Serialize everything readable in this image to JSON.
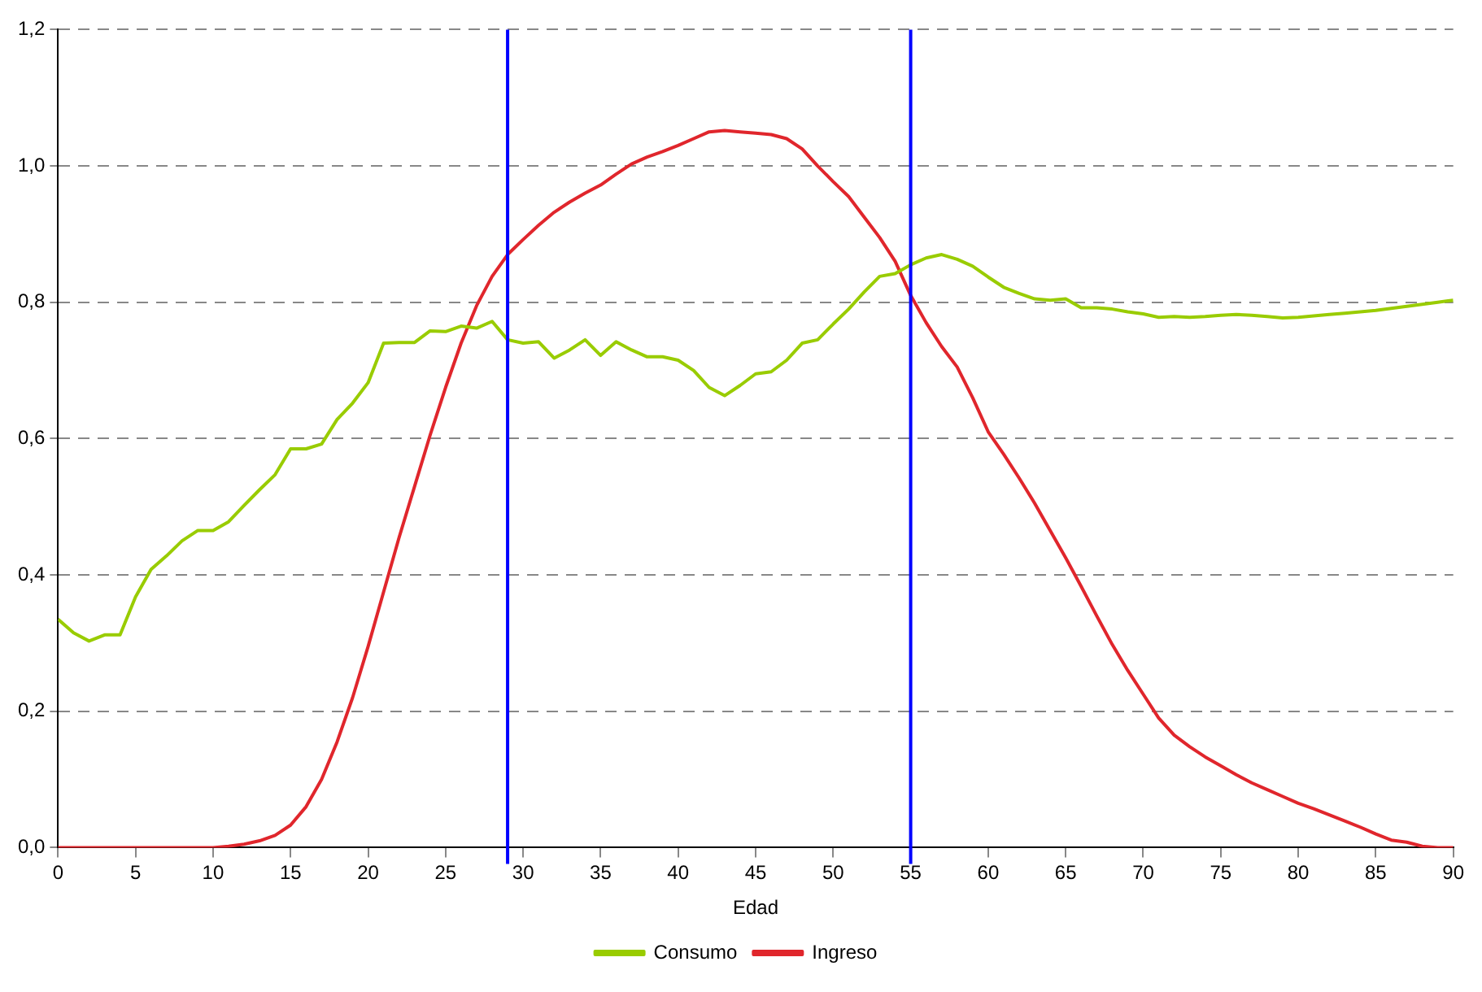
{
  "chart_data": {
    "type": "line",
    "xlabel": "Edad",
    "x": [
      0,
      1,
      2,
      3,
      4,
      5,
      6,
      7,
      8,
      9,
      10,
      11,
      12,
      13,
      14,
      15,
      16,
      17,
      18,
      19,
      20,
      21,
      22,
      23,
      24,
      25,
      26,
      27,
      28,
      29,
      30,
      31,
      32,
      33,
      34,
      35,
      36,
      37,
      38,
      39,
      40,
      41,
      42,
      43,
      44,
      45,
      46,
      47,
      48,
      49,
      50,
      51,
      52,
      53,
      54,
      55,
      56,
      57,
      58,
      59,
      60,
      61,
      62,
      63,
      64,
      65,
      66,
      67,
      68,
      69,
      70,
      71,
      72,
      73,
      74,
      75,
      76,
      77,
      78,
      79,
      80,
      81,
      82,
      83,
      84,
      85,
      86,
      87,
      88,
      89,
      90
    ],
    "series": [
      {
        "name": "Consumo",
        "color": "#99cc00",
        "values": [
          0.335,
          0.315,
          0.303,
          0.312,
          0.312,
          0.368,
          0.408,
          0.428,
          0.45,
          0.465,
          0.465,
          0.478,
          0.502,
          0.525,
          0.547,
          0.585,
          0.585,
          0.592,
          0.628,
          0.652,
          0.682,
          0.74,
          0.741,
          0.741,
          0.758,
          0.757,
          0.765,
          0.762,
          0.772,
          0.745,
          0.74,
          0.742,
          0.718,
          0.73,
          0.745,
          0.722,
          0.742,
          0.73,
          0.72,
          0.72,
          0.715,
          0.7,
          0.675,
          0.663,
          0.678,
          0.695,
          0.698,
          0.715,
          0.74,
          0.745,
          0.768,
          0.79,
          0.815,
          0.838,
          0.842,
          0.855,
          0.865,
          0.87,
          0.863,
          0.853,
          0.837,
          0.822,
          0.813,
          0.805,
          0.803,
          0.805,
          0.792,
          0.792,
          0.79,
          0.786,
          0.783,
          0.778,
          0.779,
          0.778,
          0.779,
          0.781,
          0.782,
          0.781,
          0.779,
          0.777,
          0.778,
          0.78,
          0.782,
          0.784,
          0.786,
          0.788,
          0.791,
          0.794,
          0.797,
          0.8,
          0.803
        ]
      },
      {
        "name": "Ingreso",
        "color": "#e0262c",
        "values": [
          0,
          0,
          0,
          0,
          0,
          0,
          0,
          0,
          0,
          0,
          0,
          0.002,
          0.005,
          0.01,
          0.018,
          0.033,
          0.06,
          0.1,
          0.155,
          0.22,
          0.295,
          0.375,
          0.455,
          0.53,
          0.605,
          0.675,
          0.74,
          0.795,
          0.838,
          0.87,
          0.892,
          0.913,
          0.932,
          0.947,
          0.96,
          0.972,
          0.988,
          1.003,
          1.013,
          1.021,
          1.03,
          1.04,
          1.05,
          1.052,
          1.05,
          1.048,
          1.046,
          1.04,
          1.025,
          1.0,
          0.977,
          0.955,
          0.925,
          0.895,
          0.86,
          0.81,
          0.77,
          0.735,
          0.705,
          0.66,
          0.61,
          0.577,
          0.542,
          0.505,
          0.465,
          0.425,
          0.383,
          0.34,
          0.298,
          0.26,
          0.225,
          0.19,
          0.165,
          0.148,
          0.133,
          0.12,
          0.107,
          0.095,
          0.085,
          0.075,
          0.065,
          0.057,
          0.048,
          0.039,
          0.03,
          0.02,
          0.011,
          0.008,
          0.002,
          0,
          0
        ]
      }
    ],
    "xlim": [
      0,
      90
    ],
    "xticks": [
      0,
      5,
      10,
      15,
      20,
      25,
      30,
      35,
      40,
      45,
      50,
      55,
      60,
      65,
      70,
      75,
      80,
      85,
      90
    ],
    "ylim": [
      0,
      1.2
    ],
    "yticks": [
      {
        "value": 0,
        "label": "0,0"
      },
      {
        "value": 0.2,
        "label": "0,2"
      },
      {
        "value": 0.4,
        "label": "0,4"
      },
      {
        "value": 0.6,
        "label": "0,6"
      },
      {
        "value": 0.8,
        "label": "0,8"
      },
      {
        "value": 1.0,
        "label": "1,0"
      },
      {
        "value": 1.2,
        "label": "1,2"
      }
    ],
    "ref_lines": [
      {
        "axis": "x",
        "value": 29,
        "color": "#0000ff"
      },
      {
        "axis": "x",
        "value": 55,
        "color": "#0000ff"
      }
    ],
    "grid": "y",
    "legend": "bottom",
    "marker": "none",
    "line_style": "solid"
  }
}
